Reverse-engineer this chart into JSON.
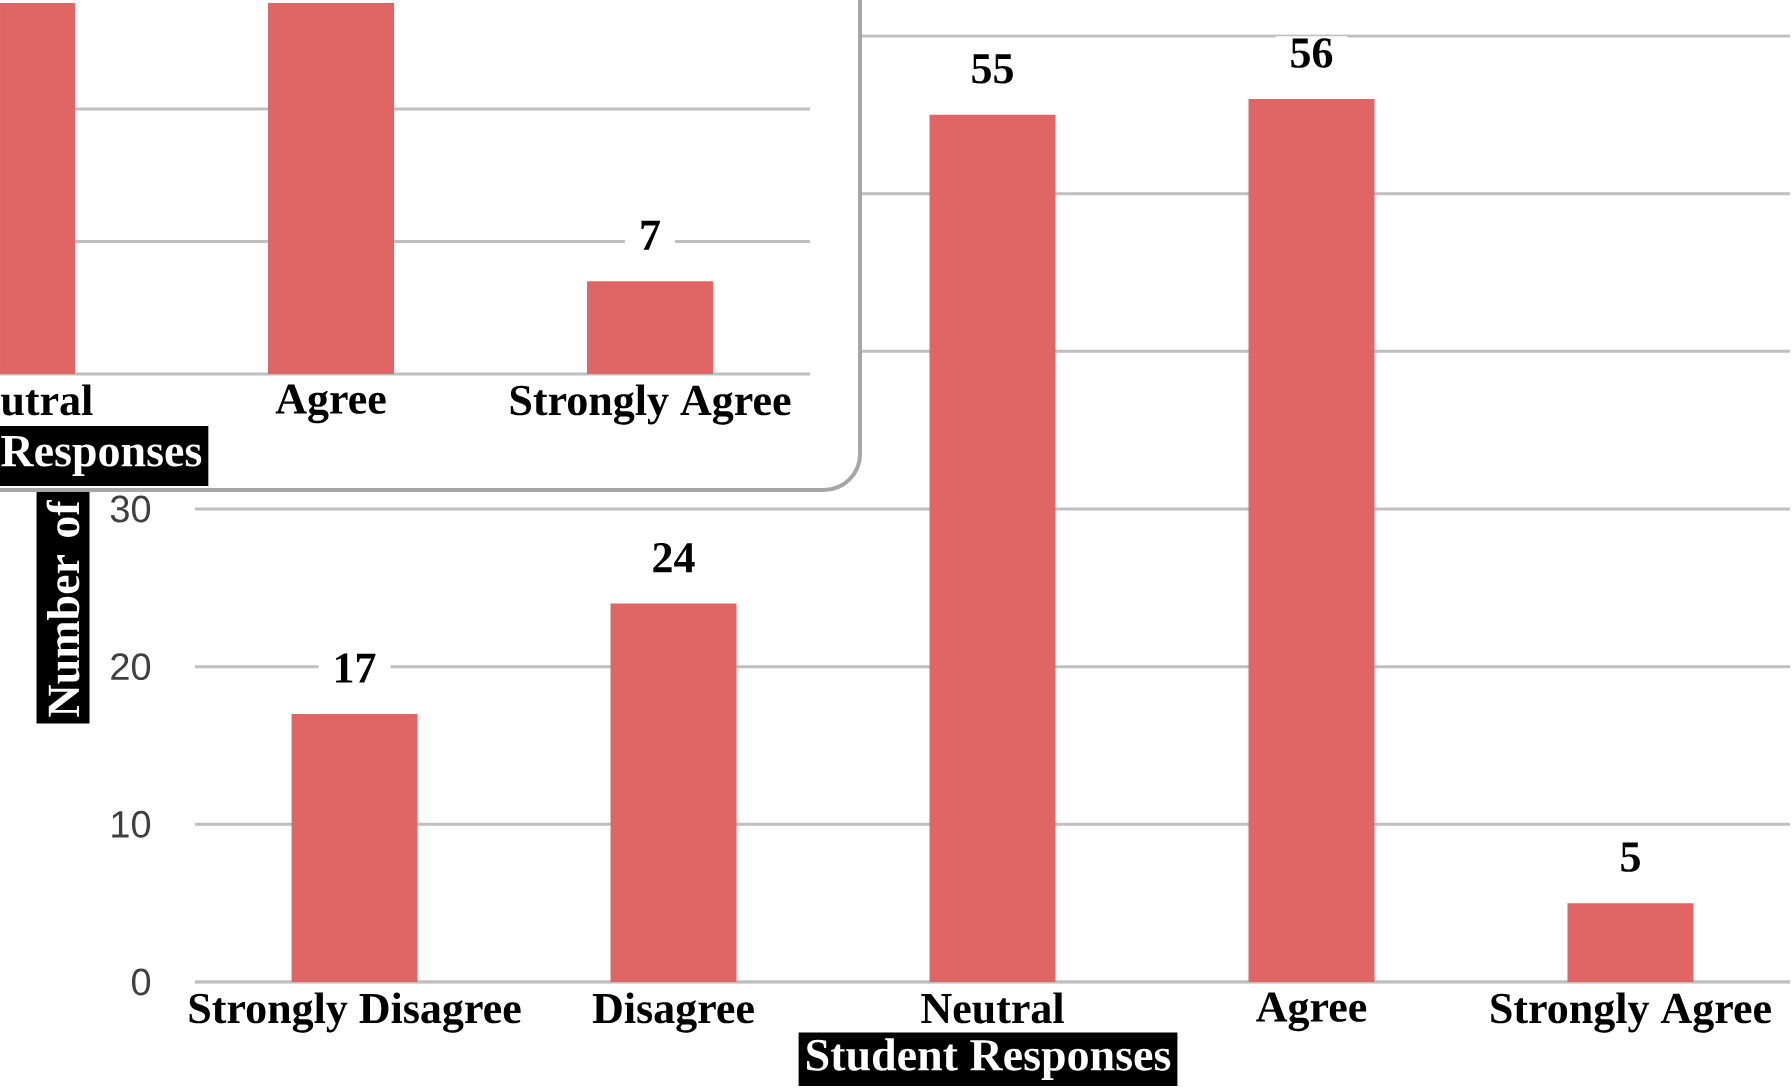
{
  "chart_data": [
    {
      "type": "bar",
      "categories": [
        "Strongly Disagree",
        "Disagree",
        "Neutral",
        "Agree",
        "Strongly Agree"
      ],
      "values": [
        17,
        24,
        55,
        56,
        5
      ],
      "color": "#e06666",
      "ylim": [
        0,
        60
      ],
      "yticks": [
        0,
        10,
        20,
        30,
        {
          "value": 40,
          "label": null
        },
        {
          "value": 50,
          "label": null
        },
        {
          "value": 60,
          "label": null
        }
      ],
      "grid": "y",
      "data_labels": true,
      "xlabel": "Student Responses",
      "ylabel": "Number of"
    },
    {
      "type": "bar",
      "categories": [
        "utral",
        "Agree",
        "Strongly Agree"
      ],
      "values": [
        28,
        28,
        7
      ],
      "value_labels": [
        null,
        null,
        "7"
      ],
      "color": "#e06666",
      "ylim": [
        0,
        28
      ],
      "yticks": [
        {
          "value": 10,
          "label": null
        },
        {
          "value": 20,
          "label": null
        }
      ],
      "grid": "y",
      "tick_labels": "x",
      "xlabel": "Responses"
    }
  ]
}
